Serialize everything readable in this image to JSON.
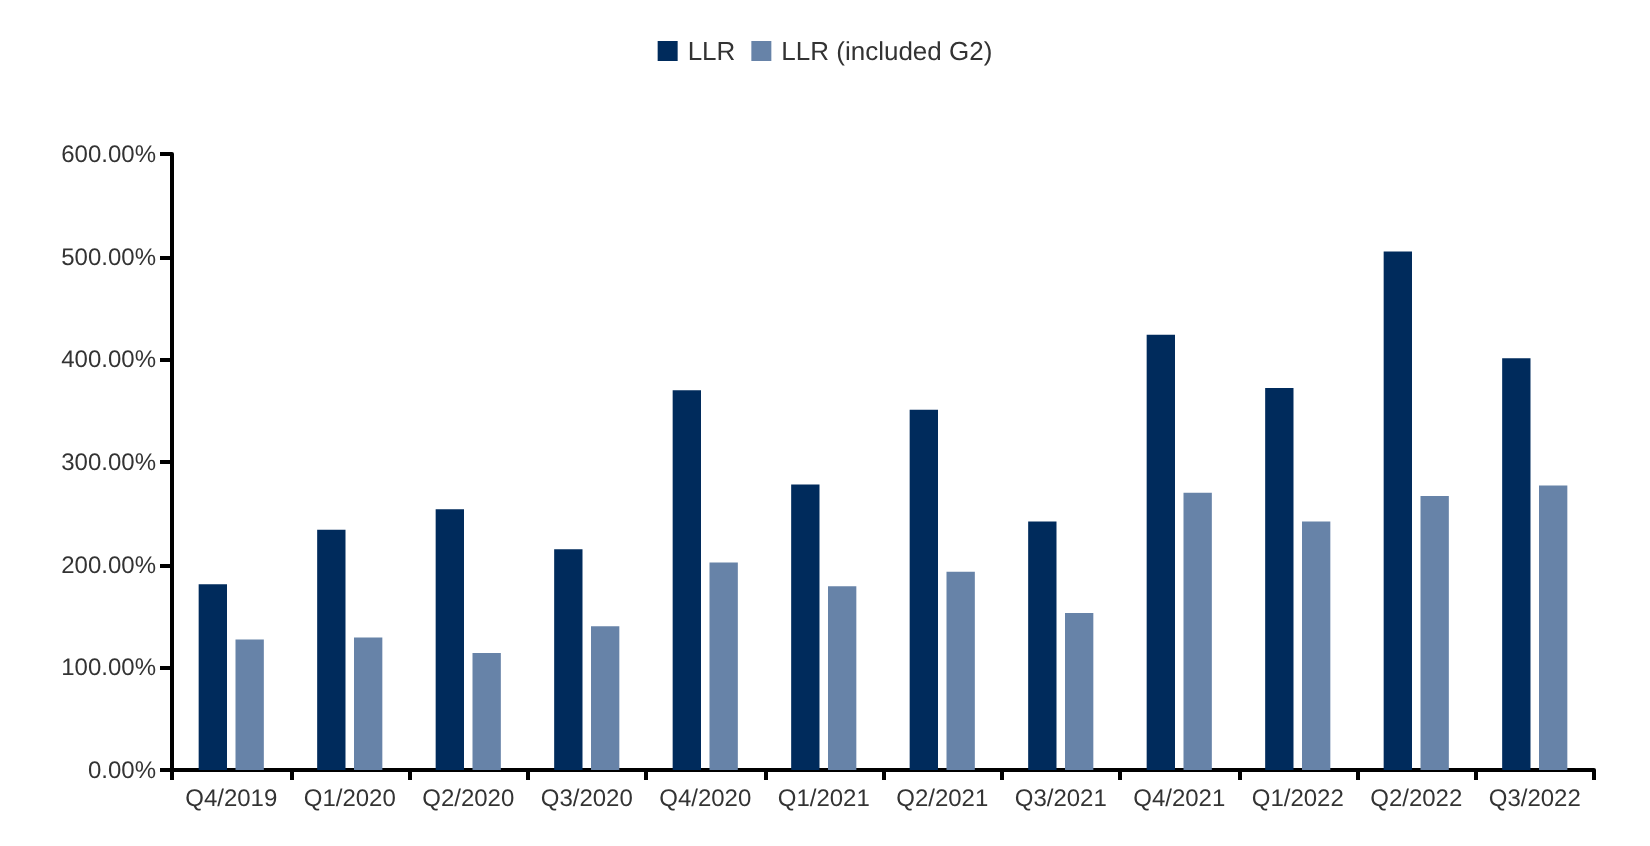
{
  "chart_data": {
    "type": "bar",
    "categories": [
      "Q4/2019",
      "Q1/2020",
      "Q2/2020",
      "Q3/2020",
      "Q4/2020",
      "Q1/2021",
      "Q2/2021",
      "Q3/2021",
      "Q4/2021",
      "Q1/2022",
      "Q2/2022",
      "Q3/2022"
    ],
    "series": [
      {
        "name": "LLR",
        "color": "#002b5c",
        "values": [
          181,
          234,
          254,
          215,
          370,
          278,
          351,
          242,
          424,
          372,
          505,
          401
        ]
      },
      {
        "name": "LLR (included G2)",
        "color": "#6783a8",
        "values": [
          127,
          129,
          114,
          140,
          202,
          179,
          193,
          153,
          270,
          242,
          267,
          277
        ]
      }
    ],
    "ylim": [
      0,
      600
    ],
    "yticks": [
      {
        "value": 0,
        "label": "0.00%"
      },
      {
        "value": 100,
        "label": "100.00%"
      },
      {
        "value": 200,
        "label": "200.00%"
      },
      {
        "value": 300,
        "label": "300.00%"
      },
      {
        "value": 400,
        "label": "400.00%"
      },
      {
        "value": 500,
        "label": "500.00%"
      },
      {
        "value": 600,
        "label": "600.00%"
      }
    ],
    "grid": false,
    "legend": "top"
  }
}
